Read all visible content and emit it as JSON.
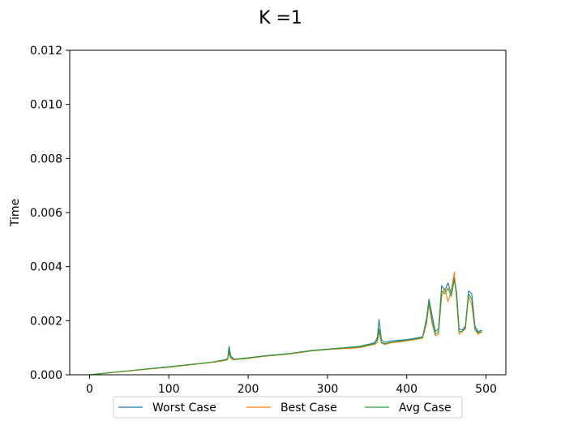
{
  "chart_data": {
    "type": "line",
    "title": "K =1",
    "xlabel": "",
    "ylabel": "Time",
    "xlim": [
      -25,
      525
    ],
    "ylim": [
      0,
      0.012
    ],
    "xticks": [
      0,
      100,
      200,
      300,
      400,
      500
    ],
    "xtick_labels": [
      "0",
      "100",
      "200",
      "300",
      "400",
      "500"
    ],
    "yticks": [
      0,
      0.002,
      0.004,
      0.006,
      0.008,
      0.01,
      0.012
    ],
    "ytick_labels": [
      "0.000",
      "0.002",
      "0.004",
      "0.006",
      "0.008",
      "0.010",
      "0.012"
    ],
    "grid": false,
    "legend_position": "bottom-center",
    "series": [
      {
        "name": "Worst Case",
        "color": "#1f77b4",
        "x": [
          0,
          50,
          100,
          150,
          170,
          174,
          176,
          178,
          182,
          190,
          200,
          220,
          250,
          280,
          300,
          320,
          340,
          355,
          360,
          363,
          365,
          368,
          372,
          380,
          400,
          410,
          420,
          425,
          428,
          432,
          436,
          440,
          444,
          448,
          452,
          456,
          460,
          463,
          466,
          470,
          474,
          478,
          482,
          486,
          490,
          495
        ],
        "values": [
          0.0,
          0.00015,
          0.0003,
          0.00045,
          0.00055,
          0.0006,
          0.00105,
          0.0007,
          0.00058,
          0.0006,
          0.00063,
          0.0007,
          0.00078,
          0.0009,
          0.00095,
          0.001,
          0.00105,
          0.00115,
          0.0012,
          0.0014,
          0.00205,
          0.0013,
          0.0012,
          0.00125,
          0.0013,
          0.00135,
          0.0014,
          0.0021,
          0.0028,
          0.0022,
          0.0016,
          0.0017,
          0.0033,
          0.0031,
          0.0034,
          0.003,
          0.0036,
          0.003,
          0.0017,
          0.00165,
          0.0018,
          0.0031,
          0.003,
          0.0018,
          0.0016,
          0.00165
        ]
      },
      {
        "name": "Best Case",
        "color": "#ff7f0e",
        "x": [
          0,
          50,
          100,
          150,
          170,
          174,
          176,
          178,
          182,
          190,
          200,
          220,
          250,
          280,
          300,
          320,
          340,
          355,
          360,
          363,
          365,
          368,
          372,
          380,
          400,
          410,
          420,
          425,
          428,
          432,
          436,
          440,
          444,
          448,
          452,
          456,
          460,
          463,
          466,
          470,
          474,
          478,
          482,
          486,
          490,
          495
        ],
        "values": [
          0.0,
          0.00014,
          0.00028,
          0.00044,
          0.00052,
          0.00056,
          0.0008,
          0.0006,
          0.00055,
          0.00058,
          0.0006,
          0.00068,
          0.00076,
          0.00088,
          0.00093,
          0.00097,
          0.001,
          0.0011,
          0.00112,
          0.0012,
          0.0016,
          0.00118,
          0.00112,
          0.00118,
          0.00125,
          0.0013,
          0.00135,
          0.0019,
          0.0026,
          0.0019,
          0.00145,
          0.0015,
          0.0029,
          0.0032,
          0.0027,
          0.0031,
          0.0038,
          0.0027,
          0.0015,
          0.0016,
          0.0017,
          0.0029,
          0.0026,
          0.00165,
          0.0015,
          0.0016
        ]
      },
      {
        "name": "Avg Case",
        "color": "#2ca02c",
        "x": [
          0,
          50,
          100,
          150,
          170,
          174,
          176,
          178,
          182,
          190,
          200,
          220,
          250,
          280,
          300,
          320,
          340,
          355,
          360,
          363,
          365,
          368,
          372,
          380,
          400,
          410,
          420,
          425,
          428,
          432,
          436,
          440,
          444,
          448,
          452,
          456,
          460,
          463,
          466,
          470,
          474,
          478,
          482,
          486,
          490,
          495
        ],
        "values": [
          0.0,
          0.00015,
          0.00029,
          0.00045,
          0.00054,
          0.00058,
          0.0009,
          0.00065,
          0.00057,
          0.00059,
          0.00062,
          0.00069,
          0.00077,
          0.00089,
          0.00094,
          0.00099,
          0.00103,
          0.00112,
          0.00116,
          0.0013,
          0.0017,
          0.0012,
          0.00115,
          0.0012,
          0.00128,
          0.00132,
          0.00138,
          0.002,
          0.0027,
          0.002,
          0.0015,
          0.0016,
          0.0031,
          0.003,
          0.0032,
          0.0029,
          0.0035,
          0.0029,
          0.0016,
          0.0016,
          0.00175,
          0.003,
          0.0028,
          0.0017,
          0.00155,
          0.0016
        ]
      }
    ]
  }
}
